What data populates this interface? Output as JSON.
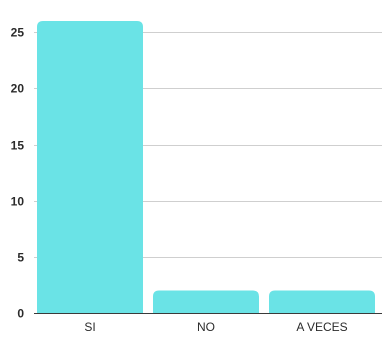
{
  "chart_data": {
    "type": "bar",
    "categories": [
      "SI",
      "NO",
      "A VECES"
    ],
    "values": [
      26,
      2,
      2
    ],
    "ylim": [
      0,
      26
    ],
    "yticks": [
      0,
      5,
      10,
      15,
      20,
      25
    ],
    "ytick_labels": [
      "0",
      "5",
      "10",
      "15",
      "20",
      "25"
    ],
    "grid": true,
    "legend": "none",
    "bar_color": "#6ae3e6",
    "grid_color": "#cfcfcf"
  }
}
